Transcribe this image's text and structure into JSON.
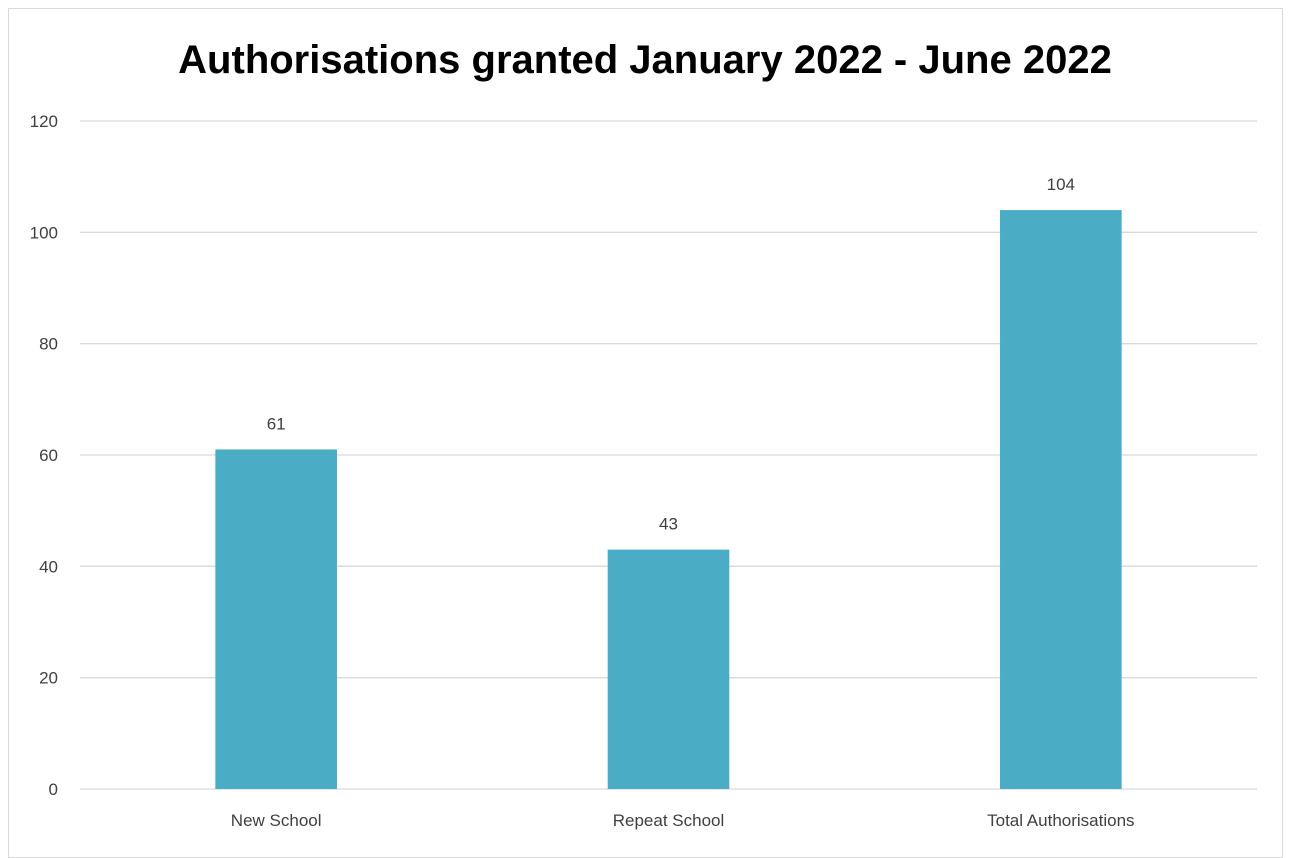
{
  "chart_data": {
    "type": "bar",
    "title": "Authorisations granted January 2022 - June 2022",
    "categories": [
      "New School",
      "Repeat School",
      "Total Authorisations"
    ],
    "values": [
      61,
      43,
      104
    ],
    "data_labels": [
      "61",
      "43",
      "104"
    ],
    "y_ticks": [
      "0",
      "20",
      "40",
      "60",
      "80",
      "100",
      "120"
    ],
    "ylim": [
      0,
      120
    ],
    "xlabel": "",
    "ylabel": "",
    "grid": true,
    "legend": "none",
    "colors": {
      "bar": "#4BACC6",
      "grid": "#d9d9d9",
      "text": "#404040"
    }
  }
}
